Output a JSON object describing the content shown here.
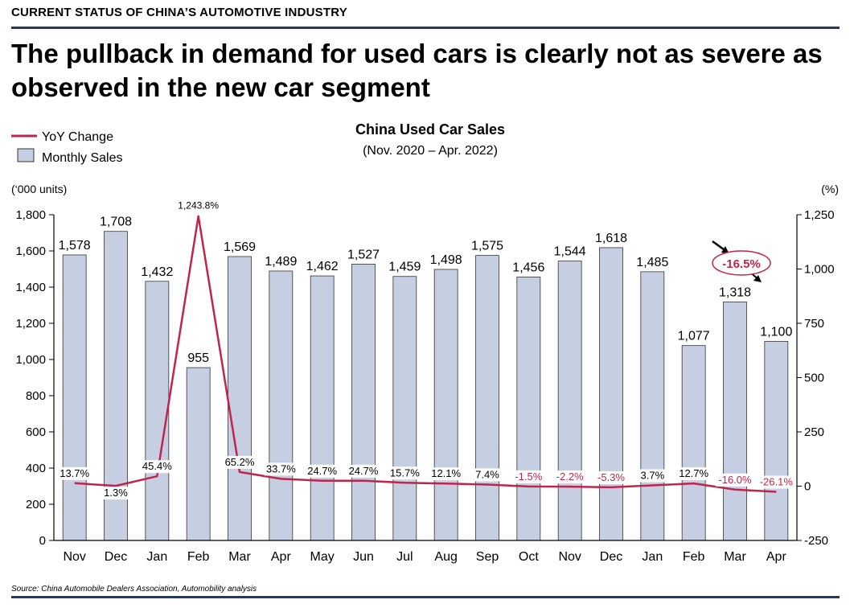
{
  "header": {
    "section_label": "CURRENT STATUS OF CHINA’S AUTOMOTIVE INDUSTRY",
    "headline": "The pullback in demand for used cars is clearly not as severe as observed in the new car segment"
  },
  "footer": {
    "source": "Source: China Automobile Dealers Association, Automobility analysis"
  },
  "colors": {
    "bar_fill": "#c6cfe2",
    "bar_stroke": "#333333",
    "line": "#c0244c",
    "rule": "#1f3a66"
  },
  "chart_data": {
    "type": "bar",
    "title": "China Used Car Sales",
    "subtitle": "(Nov. 2020 – Apr. 2022)",
    "categories": [
      "Nov",
      "Dec",
      "Jan",
      "Feb",
      "Mar",
      "Apr",
      "May",
      "Jun",
      "Jul",
      "Aug",
      "Sep",
      "Oct",
      "Nov",
      "Dec",
      "Jan",
      "Feb",
      "Mar",
      "Apr"
    ],
    "y_left": {
      "label": "(‘000 units)",
      "range": [
        0,
        1800
      ],
      "ticks": [
        0,
        200,
        400,
        600,
        800,
        1000,
        1200,
        1400,
        1600,
        1800
      ],
      "tick_labels": [
        "0",
        "200",
        "400",
        "600",
        "800",
        "1,000",
        "1,200",
        "1,400",
        "1,600",
        "1,800"
      ]
    },
    "y_right": {
      "label": "(%)",
      "range": [
        -250,
        1250
      ],
      "ticks": [
        -250,
        0,
        250,
        500,
        750,
        1000,
        1250
      ],
      "tick_labels": [
        "-250",
        "0",
        "250",
        "500",
        "750",
        "1,000",
        "1,250"
      ]
    },
    "series": [
      {
        "name": "Monthly Sales",
        "type": "bar",
        "axis": "left",
        "values": [
          1578,
          1708,
          1432,
          955,
          1569,
          1489,
          1462,
          1527,
          1459,
          1498,
          1575,
          1456,
          1544,
          1618,
          1485,
          1077,
          1318,
          1100
        ],
        "labels": [
          "1,578",
          "1,708",
          "1,432",
          "955",
          "1,569",
          "1,489",
          "1,462",
          "1,527",
          "1,459",
          "1,498",
          "1,575",
          "1,456",
          "1,544",
          "1,618",
          "1,485",
          "1,077",
          "1,318",
          "1,100"
        ]
      },
      {
        "name": "YoY Change",
        "type": "line",
        "axis": "right",
        "values": [
          13.7,
          1.3,
          45.4,
          1243.8,
          65.2,
          33.7,
          24.7,
          24.7,
          15.7,
          12.1,
          7.4,
          -1.5,
          -2.2,
          -5.3,
          3.7,
          12.7,
          -16.0,
          -26.1
        ],
        "labels": [
          "13.7%",
          "1.3%",
          "45.4%",
          "1,243.8%",
          "65.2%",
          "33.7%",
          "24.7%",
          "24.7%",
          "15.7%",
          "12.1%",
          "7.4%",
          "-1.5%",
          "-2.2%",
          "-5.3%",
          "3.7%",
          "12.7%",
          "-16.0%",
          "-26.1%"
        ]
      }
    ],
    "annotation": "-16.5%",
    "legend_position": "top-left",
    "grid": false
  }
}
